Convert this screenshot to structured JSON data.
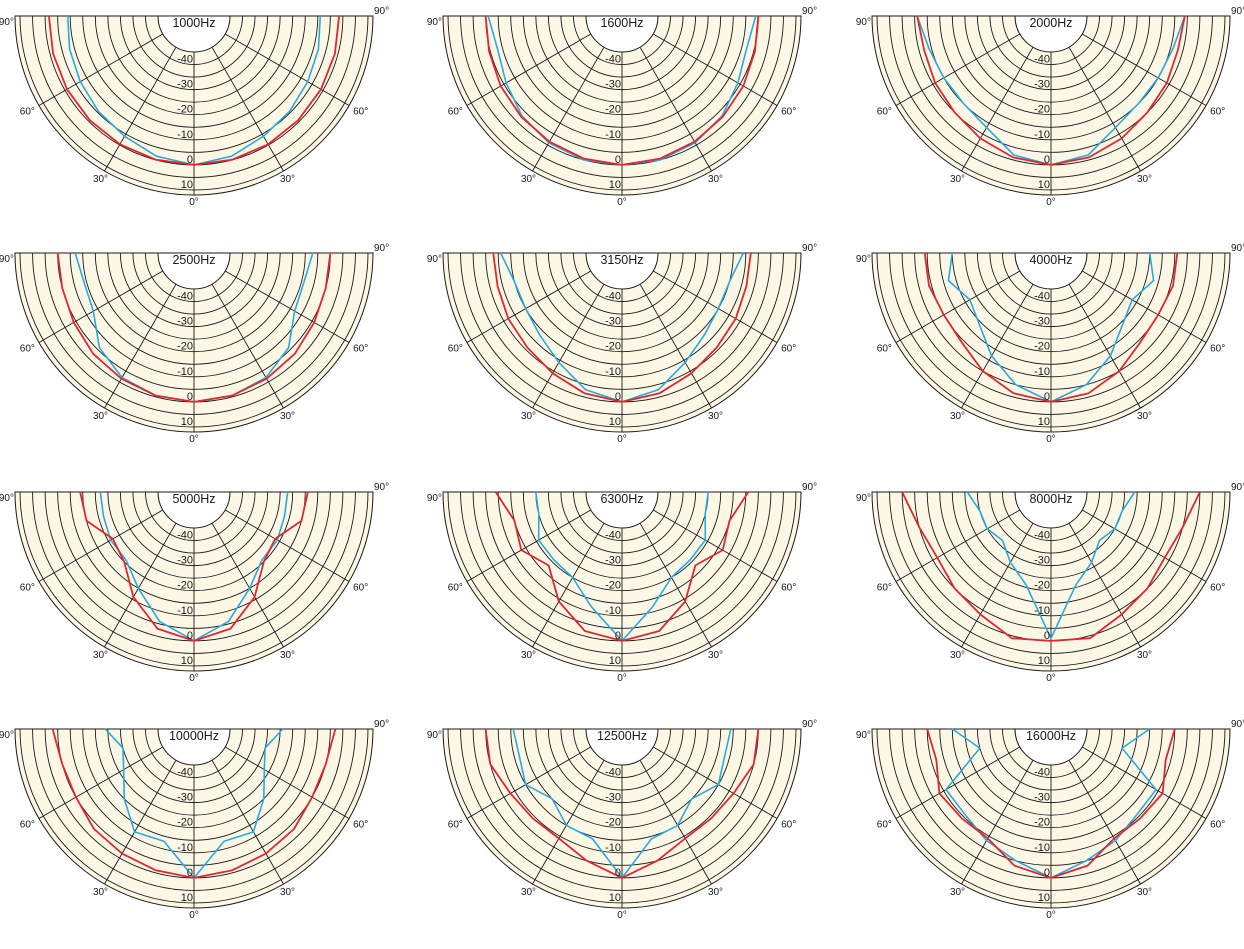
{
  "chart_data": {
    "type": "polar",
    "layout": "4x3 small multiples",
    "radial_ticks": [
      "-40",
      "-30",
      "-20",
      "-10",
      "0",
      "10"
    ],
    "radial_range_db": [
      -45,
      12
    ],
    "angle_labels": [
      "0°",
      "30°",
      "30°",
      "60°",
      "60°",
      "90°",
      "90°"
    ],
    "angles_deg": [
      -90,
      -75,
      -60,
      -45,
      -30,
      -15,
      0,
      15,
      30,
      45,
      60,
      75,
      90
    ],
    "colors": {
      "series_red": "#e3262e",
      "series_blue": "#2aa9e0",
      "background": "#fdf8e6"
    },
    "panels": [
      {
        "title": "1000Hz",
        "red": [
          -1.5,
          -1.2,
          -0.9,
          -0.6,
          -0.3,
          -0.1,
          0,
          -0.1,
          -0.3,
          -0.6,
          -0.9,
          -1.2,
          -1.5
        ],
        "blue": [
          -9,
          -8,
          -7,
          -5.5,
          -4,
          -1.5,
          0,
          -1.5,
          -4,
          -5.5,
          -7,
          -8,
          -9
        ]
      },
      {
        "title": "1600Hz",
        "red": [
          -5,
          -4.5,
          -3.5,
          -2.5,
          -1.5,
          -0.5,
          0,
          -0.5,
          -1.5,
          -2.5,
          -3.5,
          -4.5,
          -5
        ],
        "blue": [
          -6,
          -8,
          -6,
          -3,
          -1,
          0,
          0,
          0,
          -1,
          -3,
          -6,
          -8,
          -6
        ]
      },
      {
        "title": "2000Hz",
        "red": [
          -6,
          -7,
          -6,
          -5,
          -3,
          -1,
          0,
          -1,
          -3,
          -5,
          -6,
          -7,
          -6
        ],
        "blue": [
          -6,
          -9,
          -10,
          -10,
          -8,
          -2,
          0,
          -2,
          -8,
          -10,
          -10,
          -9,
          -6
        ]
      },
      {
        "title": "2500Hz",
        "red": [
          -5,
          -5,
          -4,
          -2.5,
          -1.5,
          -0.5,
          0,
          -0.5,
          -1.5,
          -2.5,
          -4,
          -5,
          -5
        ],
        "blue": [
          -12,
          -14,
          -13,
          -6,
          -2,
          -0.5,
          0,
          -0.5,
          -2,
          -6,
          -13,
          -14,
          -12
        ]
      },
      {
        "title": "3150Hz",
        "red": [
          -8,
          -8,
          -7,
          -6,
          -4,
          -1.5,
          0,
          -1.5,
          -4,
          -6,
          -7,
          -8,
          -8
        ],
        "blue": [
          -11,
          -15,
          -15,
          -13,
          -9,
          -3,
          0,
          -3,
          -9,
          -13,
          -15,
          -15,
          -11
        ]
      },
      {
        "title": "4000Hz",
        "red": [
          -9,
          -9,
          -10,
          -9,
          -5,
          -1.5,
          0,
          -1.5,
          -5,
          -9,
          -10,
          -9,
          -9
        ],
        "blue": [
          -20,
          -17,
          -22,
          -19,
          -12,
          -5,
          0,
          -5,
          -12,
          -19,
          -22,
          -17,
          -20
        ]
      },
      {
        "title": "5000Hz",
        "red": [
          -14,
          -15,
          -22,
          -20,
          -11,
          -3,
          0,
          -3,
          -11,
          -20,
          -22,
          -15,
          -14
        ],
        "blue": [
          -22,
          -22,
          -21,
          -21,
          -15,
          -6,
          0,
          -6,
          -15,
          -21,
          -21,
          -22,
          -22
        ]
      },
      {
        "title": "6300Hz",
        "red": [
          -9,
          -15,
          -13,
          -18,
          -9,
          -2,
          0,
          -2,
          -9,
          -18,
          -13,
          -15,
          -9
        ],
        "blue": [
          -25,
          -25,
          -21,
          -21,
          -20,
          -12,
          0,
          -12,
          -20,
          -21,
          -21,
          -25,
          -25
        ]
      },
      {
        "title": "8000Hz",
        "red": [
          0,
          -5,
          -7,
          -5,
          -3,
          1,
          0,
          1,
          -3,
          -5,
          -7,
          -5,
          0
        ],
        "blue": [
          -26,
          -30,
          -30,
          -32,
          -27,
          -21,
          -1,
          -21,
          -27,
          -32,
          -30,
          -30,
          -26
        ]
      },
      {
        "title": "10000Hz",
        "red": [
          -3,
          -5,
          -5,
          -3,
          -2,
          -1,
          0,
          -1,
          -2,
          -3,
          -5,
          -5,
          -3
        ],
        "blue": [
          -24,
          -30,
          -27,
          -20,
          -12,
          -13,
          0,
          -13,
          -12,
          -20,
          -27,
          -30,
          -24
        ]
      },
      {
        "title": "12500Hz",
        "red": [
          -5,
          -5,
          -8,
          -9,
          -9,
          -5,
          0,
          -5,
          -9,
          -9,
          -8,
          -5,
          -5
        ],
        "blue": [
          -16,
          -17,
          -15,
          -20,
          -15,
          -14,
          0,
          -14,
          -15,
          -20,
          -15,
          -17,
          -16
        ]
      },
      {
        "title": "16000Hz",
        "red": [
          -10,
          -12,
          -8,
          -9,
          -9,
          -3,
          0,
          -3,
          -9,
          -9,
          -8,
          -12,
          -10
        ],
        "blue": [
          -20,
          -30,
          -11,
          -11,
          -8,
          -5,
          0,
          -5,
          -8,
          -11,
          -11,
          -30,
          -20
        ]
      }
    ]
  }
}
